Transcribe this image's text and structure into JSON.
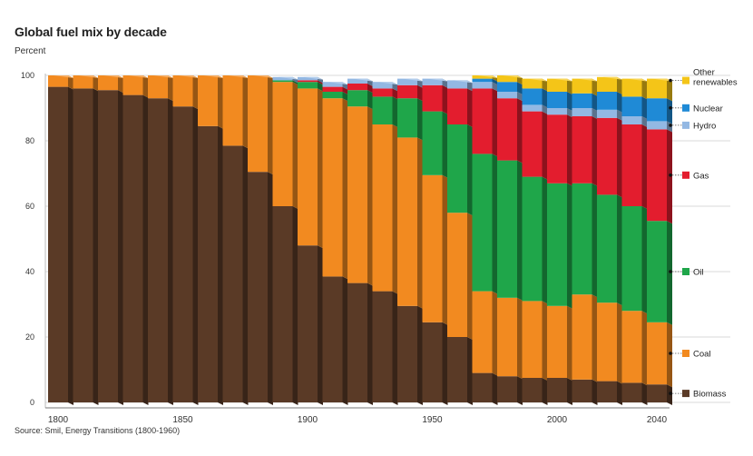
{
  "title": "Global fuel mix by decade",
  "subtitle": "Percent",
  "source": "Source: Smil, Energy Transitions (1800-1960)",
  "chart_data": {
    "type": "bar",
    "stacked": true,
    "ylim": [
      0,
      100
    ],
    "yticks": [
      0,
      20,
      40,
      60,
      80,
      100
    ],
    "xtick_labels": [
      "1800",
      "1850",
      "1900",
      "1950",
      "2000",
      "2040"
    ],
    "categories": [
      1800,
      1810,
      1820,
      1830,
      1840,
      1850,
      1860,
      1870,
      1880,
      1890,
      1900,
      1910,
      1920,
      1930,
      1940,
      1950,
      1960,
      1970,
      1980,
      1990,
      2000,
      2010,
      2020,
      2030,
      2040
    ],
    "series": [
      {
        "name": "Biomass",
        "color": "#5a3a26",
        "values": [
          96.5,
          96,
          95.5,
          94,
          93,
          90.5,
          84.5,
          78.5,
          70.5,
          60,
          48,
          38.5,
          36.5,
          34,
          29.5,
          24.5,
          20,
          9,
          8,
          7.5,
          7.5,
          7,
          6.5,
          6,
          5.5
        ]
      },
      {
        "name": "Coal",
        "color": "#f28a20",
        "values": [
          3.5,
          4,
          4.5,
          6,
          7,
          9.5,
          15.5,
          21.5,
          29.5,
          38,
          48,
          54.5,
          54,
          51,
          51.5,
          45,
          38,
          25,
          24,
          23.5,
          22,
          26,
          24,
          22,
          19
        ]
      },
      {
        "name": "Oil",
        "color": "#1fa64a",
        "values": [
          0,
          0,
          0,
          0,
          0,
          0,
          0,
          0,
          0,
          0.5,
          2,
          2,
          5,
          8.5,
          12,
          19.5,
          27,
          42,
          42,
          38,
          37.5,
          34,
          33,
          32,
          31
        ]
      },
      {
        "name": "Gas",
        "color": "#e31d2e",
        "values": [
          0,
          0,
          0,
          0,
          0,
          0,
          0,
          0,
          0,
          0,
          0.5,
          1.5,
          2,
          2.5,
          4,
          8,
          11,
          20,
          19,
          20,
          21,
          20.5,
          23.5,
          25,
          28
        ]
      },
      {
        "name": "Hydro",
        "color": "#93b8e3",
        "values": [
          0,
          0,
          0,
          0,
          0,
          0,
          0,
          0,
          0,
          1,
          1,
          1.5,
          1.5,
          2,
          2,
          2,
          2.5,
          2,
          2,
          2,
          2,
          2.5,
          2.5,
          2.5,
          2.5
        ]
      },
      {
        "name": "Nuclear",
        "color": "#1f8ad6",
        "values": [
          0,
          0,
          0,
          0,
          0,
          0,
          0,
          0,
          0,
          0,
          0,
          0,
          0,
          0,
          0,
          0,
          0,
          1,
          3,
          5,
          5,
          4.5,
          5.5,
          6,
          7
        ]
      },
      {
        "name": "Other renewables",
        "color": "#f4c518",
        "values": [
          0,
          0,
          0,
          0,
          0,
          0,
          0,
          0,
          0,
          0,
          0,
          0,
          0,
          0,
          0,
          0,
          0,
          1,
          2,
          3,
          4,
          4.5,
          4.5,
          5.5,
          6
        ]
      }
    ],
    "legend": [
      {
        "series": "Other renewables",
        "lines": [
          "Other",
          "renewables"
        ]
      },
      {
        "series": "Nuclear",
        "lines": [
          "Nuclear"
        ]
      },
      {
        "series": "Hydro",
        "lines": [
          "Hydro"
        ]
      },
      {
        "series": "Gas",
        "lines": [
          "Gas"
        ]
      },
      {
        "series": "Oil",
        "lines": [
          "Oil"
        ]
      },
      {
        "series": "Coal",
        "lines": [
          "Coal"
        ]
      },
      {
        "series": "Biomass",
        "lines": [
          "Biomass"
        ]
      }
    ]
  }
}
